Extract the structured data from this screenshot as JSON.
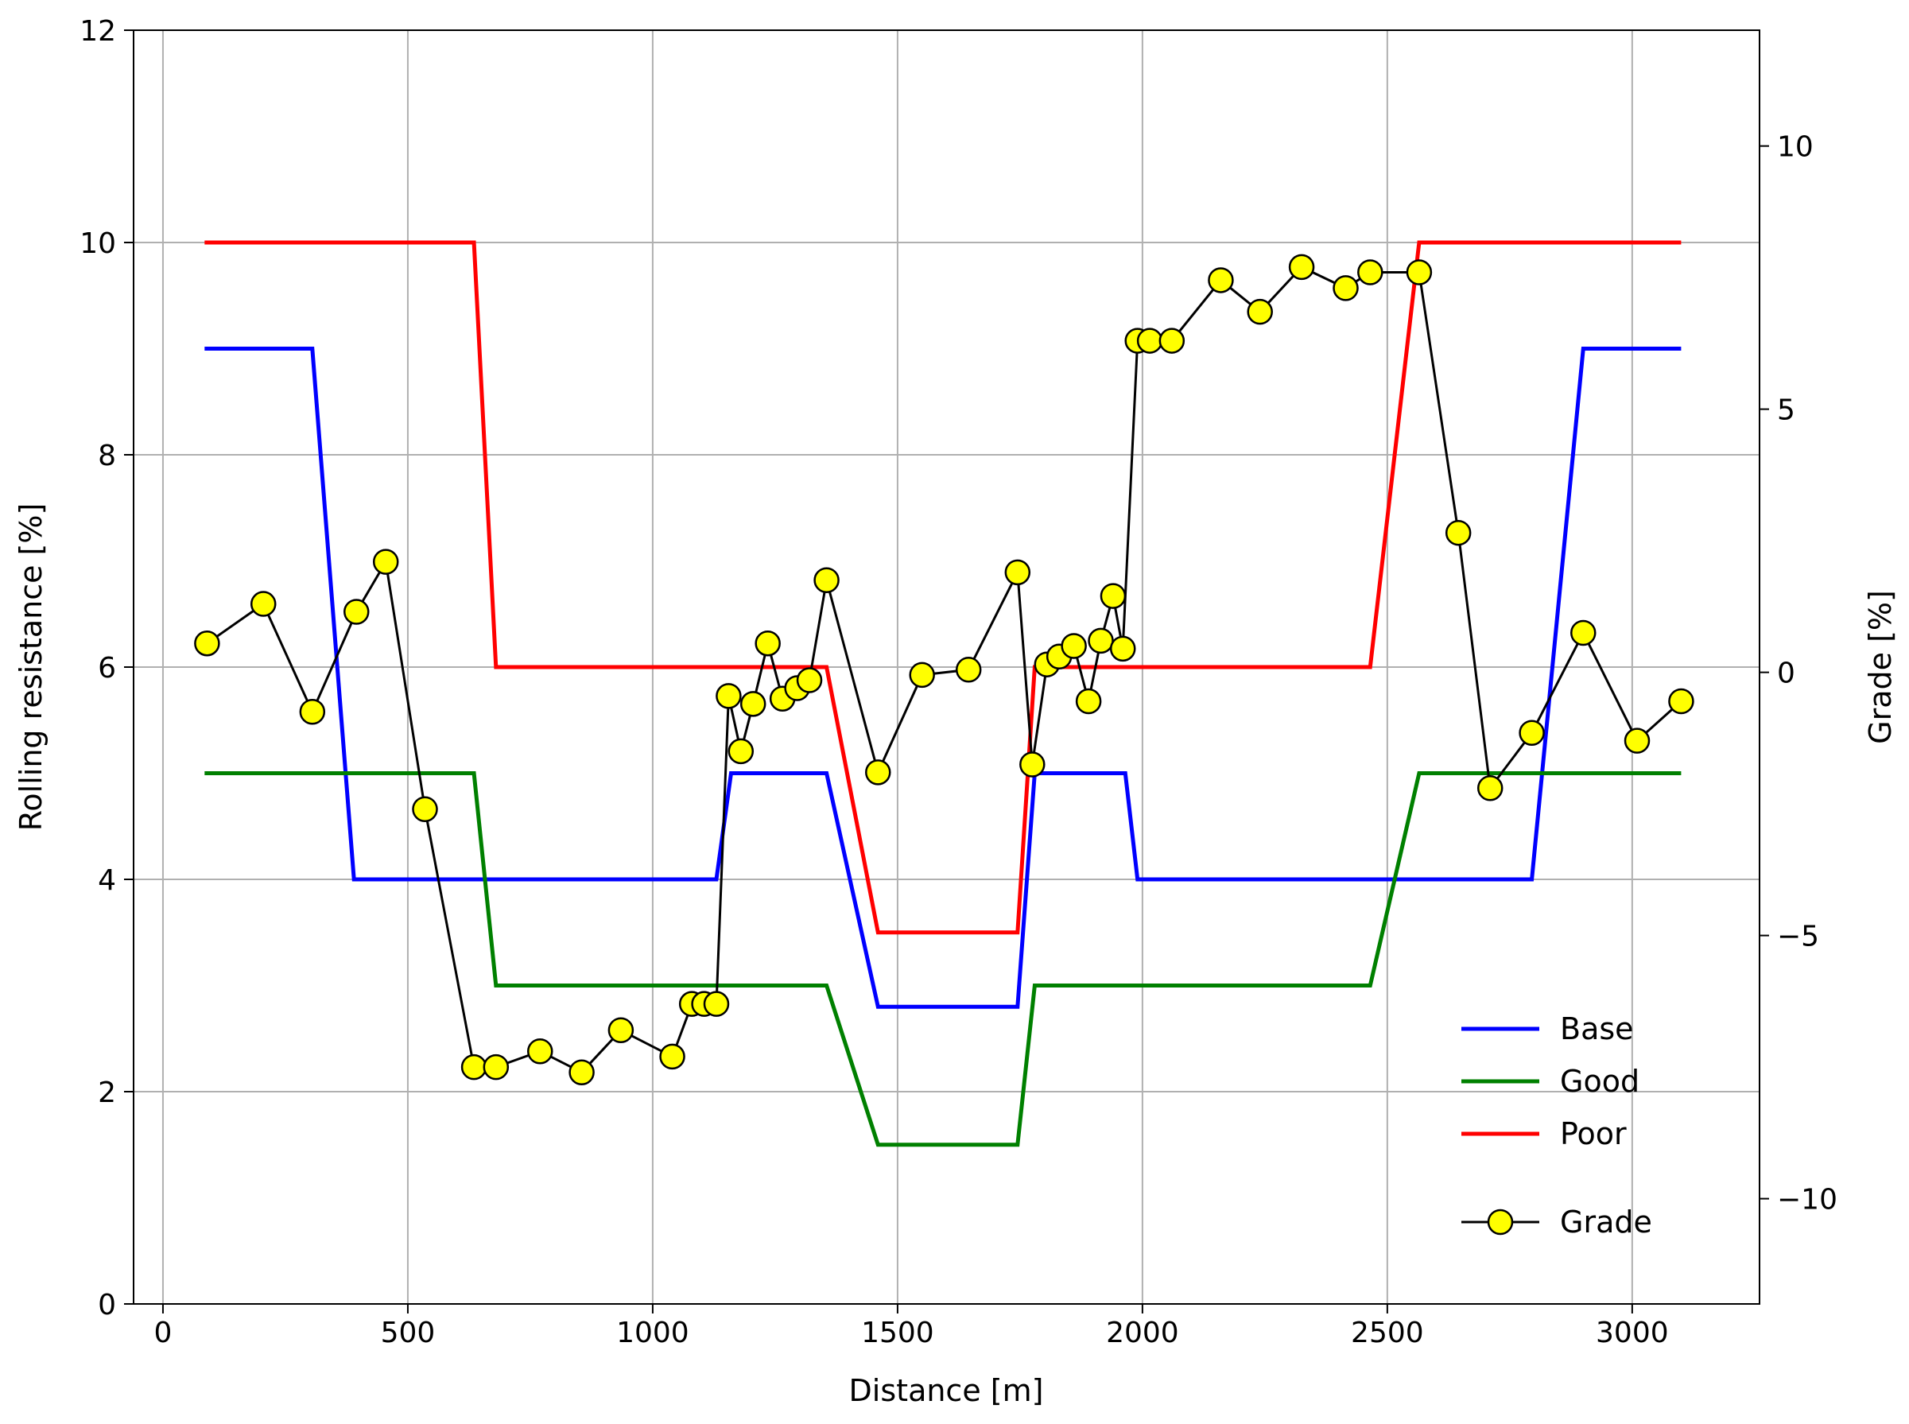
{
  "chart_data": {
    "type": "line",
    "xlabel": "Distance [m]",
    "ylabel": "Rolling resistance [%]",
    "y2label": "Grade [%]",
    "xlim": [
      -60,
      3260
    ],
    "ylim": [
      0,
      12
    ],
    "y2lim": [
      -12,
      12.2
    ],
    "xticks": [
      0,
      500,
      1000,
      1500,
      2000,
      2500,
      3000
    ],
    "yticks": [
      0,
      2,
      4,
      6,
      8,
      10,
      12
    ],
    "y2ticks": [
      -10,
      -5,
      0,
      5,
      10
    ],
    "y2tick_labels": [
      "−10",
      "−5",
      "0",
      "5",
      "10"
    ],
    "grid": true,
    "legend_position": "lower-right",
    "series": [
      {
        "name": "Base",
        "color": "#0000ff",
        "axis": "left",
        "x": [
          85,
          305,
          390,
          1130,
          1160,
          1355,
          1460,
          1745,
          1780,
          1965,
          1990,
          2795,
          2900,
          3100
        ],
        "y": [
          9,
          9,
          4,
          4,
          5,
          5,
          2.8,
          2.8,
          5,
          5,
          4,
          4,
          9,
          9
        ]
      },
      {
        "name": "Good",
        "color": "#008000",
        "axis": "left",
        "x": [
          85,
          635,
          680,
          1355,
          1460,
          1745,
          1780,
          2465,
          2565,
          3100
        ],
        "y": [
          5,
          5,
          3,
          3,
          1.5,
          1.5,
          3,
          3,
          5,
          5
        ]
      },
      {
        "name": "Poor",
        "color": "#ff0000",
        "axis": "left",
        "x": [
          85,
          635,
          680,
          1355,
          1460,
          1745,
          1780,
          2465,
          2565,
          3100
        ],
        "y": [
          10,
          10,
          6,
          6,
          3.5,
          3.5,
          6,
          6,
          10,
          10
        ]
      },
      {
        "name": "Grade",
        "color": "#000000",
        "marker_color": "#ffff00",
        "axis": "right",
        "x": [
          90,
          205,
          305,
          395,
          455,
          535,
          635,
          680,
          770,
          855,
          935,
          1040,
          1080,
          1105,
          1130,
          1155,
          1180,
          1205,
          1235,
          1265,
          1295,
          1320,
          1355,
          1460,
          1550,
          1645,
          1745,
          1775,
          1805,
          1830,
          1860,
          1890,
          1915,
          1940,
          1960,
          1990,
          2015,
          2060,
          2160,
          2240,
          2325,
          2415,
          2465,
          2565,
          2645,
          2710,
          2795,
          2900,
          3010,
          3100
        ],
        "y": [
          0.55,
          1.3,
          -0.75,
          1.15,
          2.1,
          -2.6,
          -7.5,
          -7.5,
          -7.2,
          -7.6,
          -6.8,
          -7.3,
          -6.3,
          -6.3,
          -6.3,
          -0.45,
          -1.5,
          -0.6,
          0.55,
          -0.5,
          -0.3,
          -0.15,
          1.75,
          -1.9,
          -0.05,
          0.05,
          1.9,
          -1.75,
          0.15,
          0.3,
          0.5,
          -0.55,
          0.6,
          1.45,
          0.45,
          6.3,
          6.3,
          6.3,
          7.45,
          6.85,
          7.7,
          7.3,
          7.6,
          7.6,
          2.65,
          -2.2,
          -1.15,
          0.75,
          -1.3,
          -0.55
        ]
      }
    ]
  }
}
